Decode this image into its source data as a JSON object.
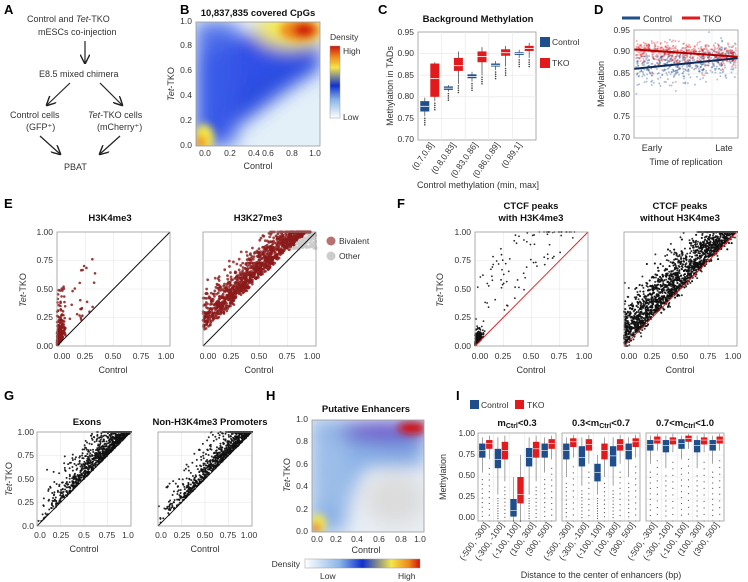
{
  "panels": {
    "A": {
      "label": "A",
      "line1": "Control and ",
      "line1_it": "Tet",
      "line1_end": "-TKO",
      "line2": "mESCs co-injection",
      "step2": "E8.5 mixed chimera",
      "ctrl_cells": "Control cells",
      "ctrl_sub": "(GFP⁺)",
      "tko_cells_it": "Tet",
      "tko_cells": "-TKO cells",
      "tko_sub": "(mCherry⁺)",
      "final": "PBAT"
    },
    "B": {
      "label": "B",
      "title": "10,837,835 covered CpGs",
      "xlabel": "Control",
      "ylabel_it": "Tet",
      "ylabel": "-TKO",
      "legend_title": "Density",
      "legend_high": "High",
      "legend_low": "Low"
    },
    "C": {
      "label": "C",
      "title": "Background Methylation",
      "ylabel": "Methylation in TADs",
      "xlabel": "Control methylation (min, max]",
      "legend_control": "Control",
      "legend_tko": "TKO"
    },
    "D": {
      "label": "D",
      "legend_control": "Control",
      "legend_tko": "TKO",
      "ylabel": "Methylation",
      "xlabel": "Time of replication",
      "x_early": "Early",
      "x_late": "Late"
    },
    "E": {
      "label": "E",
      "title1": "H3K4me3",
      "title2": "H3K27me3",
      "xlabel": "Control",
      "ylabel_it": "Tet",
      "ylabel": "-TKO",
      "legend_bivalent": "Bivalent",
      "legend_other": "Other"
    },
    "F": {
      "label": "F",
      "title1a": "CTCF peaks",
      "title1b": "with H3K4me3",
      "title2a": "CTCF peaks",
      "title2b": "without H3K4me3",
      "xlabel": "Control",
      "ylabel_it": "Tet",
      "ylabel": "-TKO"
    },
    "G": {
      "label": "G",
      "title1": "Exons",
      "title2": "Non-H3K4me3 Promoters",
      "xlabel": "Control",
      "ylabel_it": "Tet",
      "ylabel": "-TKO"
    },
    "H": {
      "label": "H",
      "title": "Putative Enhancers",
      "xlabel": "Control",
      "ylabel_it": "Tet",
      "ylabel": "-TKO",
      "legend_title": "Density",
      "legend_low": "Low",
      "legend_high": "High"
    },
    "I": {
      "label": "I",
      "legend_control": "Control",
      "legend_tko": "TKO",
      "facet1": "m",
      "facet1_sub": "Ctrl",
      "facet1_end": "<0.3",
      "facet2_a": "0.3<m",
      "facet2_sub": "Ctrl",
      "facet2_end": "<0.7",
      "facet3_a": "0.7<m",
      "facet3_sub": "Ctrl",
      "facet3_end": "<1.0",
      "ylabel": "Methylation",
      "xlabel": "Distance to the center of enhancers (bp)"
    }
  },
  "colors": {
    "control": "#1f4e8c",
    "tko": "#e31a1c",
    "bivalent": "#8b1a1a",
    "other": "#cccccc"
  },
  "chart_data": [
    {
      "id": "B",
      "type": "heatmap",
      "title": "10,837,835 covered CpGs",
      "xlabel": "Control",
      "ylabel": "Tet-TKO",
      "xlim": [
        0,
        1
      ],
      "ylim": [
        0,
        1
      ],
      "x_ticks": [
        "0.0",
        "0.2",
        "0.4",
        "0.6",
        "0.8",
        "1.0"
      ],
      "y_ticks": [
        "0.0",
        "0.2",
        "0.4",
        "0.6",
        "0.8",
        "1.0"
      ],
      "hotspots": [
        {
          "x": 0.88,
          "y": 0.9,
          "level": "High"
        },
        {
          "x": 0.03,
          "y": 0.04,
          "level": "High"
        }
      ]
    },
    {
      "id": "C",
      "type": "box",
      "title": "Background Methylation",
      "xlabel": "Control methylation (min, max]",
      "ylabel": "Methylation in TADs",
      "ylim": [
        0.7,
        0.95
      ],
      "y_ticks": [
        "0.70",
        "0.75",
        "0.80",
        "0.85",
        "0.90",
        "0.95"
      ],
      "categories": [
        "(0.7,0.8]",
        "(0.8,0.83]",
        "(0.83,0.86]",
        "(0.86,0.89]",
        "(0.89,1]"
      ],
      "series": [
        {
          "name": "Control",
          "boxes": [
            {
              "q1": 0.766,
              "med": 0.778,
              "q3": 0.79,
              "lo": 0.755,
              "hi": 0.798
            },
            {
              "q1": 0.816,
              "med": 0.82,
              "q3": 0.824,
              "lo": 0.812,
              "hi": 0.827
            },
            {
              "q1": 0.843,
              "med": 0.847,
              "q3": 0.852,
              "lo": 0.835,
              "hi": 0.858
            },
            {
              "q1": 0.87,
              "med": 0.873,
              "q3": 0.877,
              "lo": 0.862,
              "hi": 0.883
            },
            {
              "q1": 0.897,
              "med": 0.9,
              "q3": 0.903,
              "lo": 0.89,
              "hi": 0.909
            }
          ]
        },
        {
          "name": "TKO",
          "boxes": [
            {
              "q1": 0.8,
              "med": 0.842,
              "q3": 0.877,
              "lo": 0.79,
              "hi": 0.88
            },
            {
              "q1": 0.86,
              "med": 0.872,
              "q3": 0.89,
              "lo": 0.83,
              "hi": 0.905
            },
            {
              "q1": 0.88,
              "med": 0.893,
              "q3": 0.905,
              "lo": 0.85,
              "hi": 0.915
            },
            {
              "q1": 0.895,
              "med": 0.902,
              "q3": 0.91,
              "lo": 0.87,
              "hi": 0.918
            },
            {
              "q1": 0.906,
              "med": 0.912,
              "q3": 0.918,
              "lo": 0.89,
              "hi": 0.925
            }
          ]
        }
      ]
    },
    {
      "id": "D",
      "type": "scatter",
      "xlabel": "Time of replication",
      "ylabel": "Methylation",
      "ylim": [
        0.7,
        0.95
      ],
      "y_ticks": [
        "0.70",
        "0.75",
        "0.80",
        "0.85",
        "0.90",
        "0.95"
      ],
      "x_ticks": [
        "Early",
        "Late"
      ],
      "series": [
        {
          "name": "Control",
          "trend": [
            0.86,
            0.885
          ]
        },
        {
          "name": "TKO",
          "trend": [
            0.905,
            0.888
          ]
        }
      ]
    },
    {
      "id": "E1",
      "type": "scatter",
      "title": "H3K4me3",
      "xlabel": "Control",
      "ylabel": "Tet-TKO",
      "xlim": [
        0,
        1
      ],
      "ylim": [
        0,
        1
      ],
      "x_ticks": [
        "0.00",
        "0.25",
        "0.50",
        "0.75",
        "1.00"
      ],
      "y_ticks": [
        "0.00",
        "0.25",
        "0.50",
        "0.75",
        "1.00"
      ]
    },
    {
      "id": "E2",
      "type": "scatter",
      "title": "H3K27me3",
      "xlabel": "Control",
      "xlim": [
        0,
        1
      ],
      "ylim": [
        0,
        1
      ],
      "x_ticks": [
        "0.00",
        "0.25",
        "0.50",
        "0.75",
        "1.00"
      ],
      "legend": [
        "Bivalent",
        "Other"
      ]
    },
    {
      "id": "F1",
      "type": "scatter",
      "title": "CTCF peaks with H3K4me3",
      "xlabel": "Control",
      "xlim": [
        0,
        1
      ],
      "ylim": [
        0,
        1
      ],
      "x_ticks": [
        "0.00",
        "0.25",
        "0.50",
        "0.75",
        "1.00"
      ],
      "y_ticks": [
        "0.00",
        "0.25",
        "0.50",
        "0.75",
        "1.00"
      ]
    },
    {
      "id": "F2",
      "type": "scatter",
      "title": "CTCF peaks without H3K4me3",
      "xlabel": "Control",
      "xlim": [
        0,
        1
      ],
      "ylim": [
        0,
        1
      ],
      "x_ticks": [
        "0.00",
        "0.25",
        "0.50",
        "0.75",
        "1.00"
      ]
    },
    {
      "id": "G1",
      "type": "scatter",
      "title": "Exons",
      "xlabel": "Control",
      "xlim": [
        0,
        1
      ],
      "ylim": [
        0,
        1
      ],
      "x_ticks": [
        "0.0",
        "0.25",
        "0.5",
        "0.75",
        "1.0"
      ],
      "y_ticks": [
        "0.0",
        "0.25",
        "0.50",
        "0.75",
        "1.00"
      ]
    },
    {
      "id": "G2",
      "type": "scatter",
      "title": "Non-H3K4me3 Promoters",
      "xlabel": "Control",
      "xlim": [
        0,
        1
      ],
      "ylim": [
        0,
        1
      ],
      "x_ticks": [
        "0.0",
        "0.25",
        "0.50",
        "0.75",
        "1.00"
      ]
    },
    {
      "id": "H",
      "type": "heatmap",
      "title": "Putative Enhancers",
      "xlabel": "Control",
      "xlim": [
        0,
        1
      ],
      "ylim": [
        0,
        1
      ],
      "x_ticks": [
        "0.0",
        "0.2",
        "0.4",
        "0.6",
        "0.8",
        "1.0"
      ],
      "y_ticks": [
        "0.0",
        "0.2",
        "0.4",
        "0.6",
        "0.8",
        "1.0"
      ]
    },
    {
      "id": "I",
      "type": "box",
      "ylabel": "Methylation",
      "xlabel": "Distance to the center of enhancers (bp)",
      "ylim": [
        0,
        1
      ],
      "y_ticks": [
        "0.00",
        "0.25",
        "0.50",
        "0.75",
        "1.00"
      ],
      "categories": [
        "(-500, -300]",
        "(-300, -100]",
        "(-100, 100]",
        "(100, 300]",
        "(300, 500]"
      ],
      "facets": [
        {
          "name": "mCtrl<0.3",
          "control": [
            {
              "q1": 0.72,
              "med": 0.8,
              "q3": 0.88,
              "lo": 0.55,
              "hi": 0.95
            },
            {
              "q1": 0.6,
              "med": 0.7,
              "q3": 0.82,
              "lo": 0.3,
              "hi": 0.95
            },
            {
              "q1": 0.05,
              "med": 0.12,
              "q3": 0.25,
              "lo": 0.0,
              "hi": 0.5
            },
            {
              "q1": 0.62,
              "med": 0.72,
              "q3": 0.83,
              "lo": 0.3,
              "hi": 0.95
            },
            {
              "q1": 0.72,
              "med": 0.8,
              "q3": 0.88,
              "lo": 0.55,
              "hi": 0.95
            }
          ],
          "tko": [
            {
              "q1": 0.82,
              "med": 0.88,
              "q3": 0.92,
              "lo": 0.7,
              "hi": 0.97
            },
            {
              "q1": 0.7,
              "med": 0.8,
              "q3": 0.9,
              "lo": 0.45,
              "hi": 0.97
            },
            {
              "q1": 0.2,
              "med": 0.3,
              "q3": 0.5,
              "lo": 0.0,
              "hi": 0.75
            },
            {
              "q1": 0.72,
              "med": 0.82,
              "q3": 0.9,
              "lo": 0.45,
              "hi": 0.97
            },
            {
              "q1": 0.82,
              "med": 0.88,
              "q3": 0.93,
              "lo": 0.7,
              "hi": 0.97
            }
          ]
        },
        {
          "name": "0.3<mCtrl<0.7",
          "control": [
            {
              "q1": 0.7,
              "med": 0.8,
              "q3": 0.88,
              "lo": 0.5,
              "hi": 0.95
            },
            {
              "q1": 0.62,
              "med": 0.72,
              "q3": 0.85,
              "lo": 0.4,
              "hi": 0.95
            },
            {
              "q1": 0.45,
              "med": 0.55,
              "q3": 0.65,
              "lo": 0.3,
              "hi": 0.75
            },
            {
              "q1": 0.62,
              "med": 0.74,
              "q3": 0.85,
              "lo": 0.4,
              "hi": 0.95
            },
            {
              "q1": 0.7,
              "med": 0.8,
              "q3": 0.88,
              "lo": 0.5,
              "hi": 0.95
            }
          ],
          "tko": [
            {
              "q1": 0.84,
              "med": 0.9,
              "q3": 0.94,
              "lo": 0.72,
              "hi": 0.98
            },
            {
              "q1": 0.8,
              "med": 0.87,
              "q3": 0.93,
              "lo": 0.65,
              "hi": 0.98
            },
            {
              "q1": 0.7,
              "med": 0.8,
              "q3": 0.88,
              "lo": 0.5,
              "hi": 0.95
            },
            {
              "q1": 0.8,
              "med": 0.87,
              "q3": 0.93,
              "lo": 0.65,
              "hi": 0.98
            },
            {
              "q1": 0.84,
              "med": 0.9,
              "q3": 0.94,
              "lo": 0.72,
              "hi": 0.98
            }
          ]
        },
        {
          "name": "0.7<mCtrl<1.0",
          "control": [
            {
              "q1": 0.8,
              "med": 0.87,
              "q3": 0.92,
              "lo": 0.65,
              "hi": 0.97
            },
            {
              "q1": 0.78,
              "med": 0.86,
              "q3": 0.92,
              "lo": 0.6,
              "hi": 0.97
            },
            {
              "q1": 0.82,
              "med": 0.88,
              "q3": 0.93,
              "lo": 0.7,
              "hi": 0.97
            },
            {
              "q1": 0.78,
              "med": 0.86,
              "q3": 0.92,
              "lo": 0.6,
              "hi": 0.97
            },
            {
              "q1": 0.8,
              "med": 0.87,
              "q3": 0.92,
              "lo": 0.65,
              "hi": 0.97
            }
          ],
          "tko": [
            {
              "q1": 0.88,
              "med": 0.92,
              "q3": 0.96,
              "lo": 0.8,
              "hi": 0.99
            },
            {
              "q1": 0.87,
              "med": 0.92,
              "q3": 0.95,
              "lo": 0.78,
              "hi": 0.99
            },
            {
              "q1": 0.9,
              "med": 0.94,
              "q3": 0.97,
              "lo": 0.82,
              "hi": 0.99
            },
            {
              "q1": 0.87,
              "med": 0.92,
              "q3": 0.95,
              "lo": 0.78,
              "hi": 0.99
            },
            {
              "q1": 0.88,
              "med": 0.92,
              "q3": 0.96,
              "lo": 0.8,
              "hi": 0.99
            }
          ]
        }
      ]
    }
  ]
}
